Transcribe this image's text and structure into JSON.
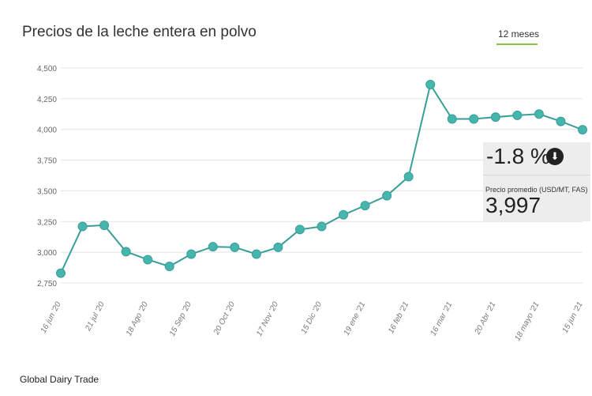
{
  "title": "Precios de la leche entera en polvo",
  "range_label": "12 meses",
  "source": "Global Dairy Trade",
  "summary": {
    "change": "-1.8 %",
    "change_icon": "arrow-down-circle-icon",
    "price_label": "Precio promedio (USD/MT, FAS)",
    "price": "3,997"
  },
  "colors": {
    "line": "#3a9e98",
    "marker": "#45b5ae",
    "accent": "#8bc34a"
  },
  "chart_data": {
    "type": "line",
    "title": "Precios de la leche entera en polvo",
    "ylim": [
      2750,
      4500
    ],
    "yticks": [
      "2,750",
      "3,000",
      "3,250",
      "3,500",
      "3,750",
      "4,000",
      "4,250",
      "4,500"
    ],
    "ytick_values": [
      2750,
      3000,
      3250,
      3500,
      3750,
      4000,
      4250,
      4500
    ],
    "xtick_labels": [
      "16 jun '20",
      "21 jul '20",
      "18 Ago '20",
      "15 Sep '20",
      "20 Oct '20",
      "17 Nov '20",
      "15 Dic '20",
      "19 ene '21",
      "16 feb '21",
      "16 mar '21",
      "20 Abr '21",
      "18 mayo '21",
      "15 jun '21"
    ],
    "grid": true,
    "values": [
      2830,
      3210,
      3220,
      3005,
      2940,
      2885,
      2985,
      3045,
      3040,
      2985,
      3040,
      3185,
      3210,
      3305,
      3380,
      3460,
      3615,
      4365,
      4085,
      4085,
      4100,
      4115,
      4125,
      4065,
      3997
    ]
  }
}
